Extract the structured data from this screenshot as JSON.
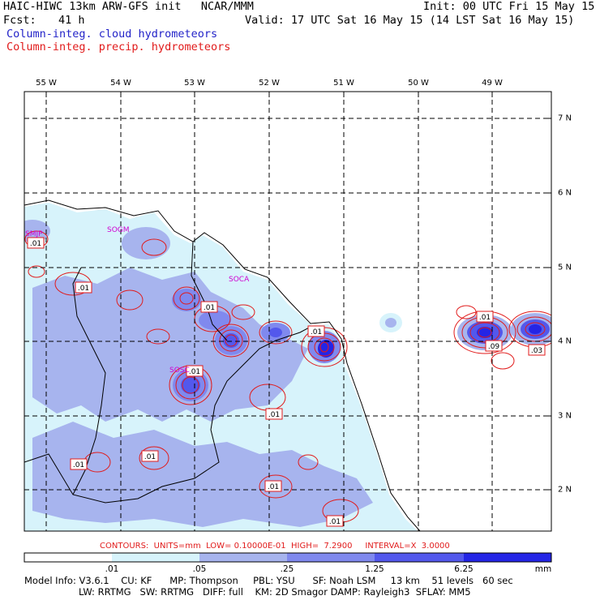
{
  "header": {
    "line1": "HAIC-HIWC 13km ARW-GFS init   NCAR/MMM",
    "init": "Init: 00 UTC Fri 15 May 15",
    "fcst_label": "Fcst:",
    "fcst_value": "41 h",
    "valid": "Valid: 17 UTC Sat 16 May 15 (14 LST Sat 16 May 15)",
    "field_blue": "Column-integ. cloud hydrometeors",
    "field_red": "Column-integ. precip. hydrometeors"
  },
  "axes": {
    "longitude_labels": [
      "55 W",
      "54 W",
      "53 W",
      "52 W",
      "51 W",
      "50 W",
      "49 W"
    ],
    "latitude_labels": [
      "7 N",
      "6 N",
      "5 N",
      "4 N",
      "3 N",
      "2 N"
    ]
  },
  "stations": [
    "SMJP",
    "SOGM",
    "SOCA",
    "SOSC"
  ],
  "contour_labels": [
    ".01",
    ".01",
    ".01",
    ".01",
    ".01",
    ".01",
    ".01",
    ".01",
    ".01",
    ".01",
    ".01",
    ".03",
    ".09"
  ],
  "contour_info": "CONTOURS:  UNITS=mm  LOW= 0.10000E-01  HIGH=  7.2900     INTERVAL=X  3.0000",
  "legend": {
    "ticks": [
      ".01",
      ".05",
      ".25",
      "1.25",
      "6.25"
    ],
    "units": "mm",
    "colors": [
      "#ffffff",
      "#d7f3fb",
      "#a7b4ee",
      "#8089ee",
      "#5358ec",
      "#2425e6"
    ]
  },
  "model_info": {
    "line1": "Model Info: V3.6.1    CU: KF      MP: Thompson     PBL: YSU      SF: Noah LSM     13 km    51 levels   60 sec",
    "line2": "LW: RRTMG   SW: RRTMG   DIFF: full    KM: 2D Smagor DAMP: Rayleigh3  SFLAY: MM5"
  },
  "colors": {
    "cloud_title": "#2323c8",
    "precip_title": "#e11b1b",
    "station": "#d000d0",
    "contour": "#e11b1b"
  }
}
